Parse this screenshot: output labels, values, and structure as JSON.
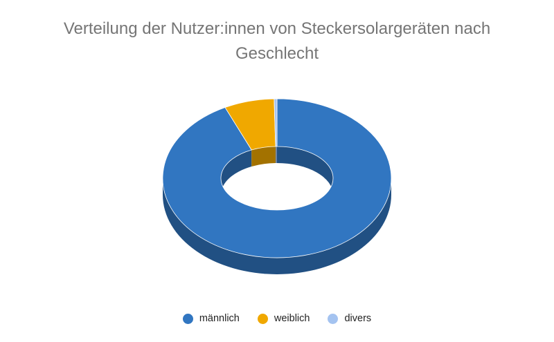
{
  "chart_data": {
    "type": "pie",
    "variant": "3d-donut",
    "title_lines": [
      "Verteilung der Nutzer:innen von Steckersolargeräten nach",
      "Geschlecht"
    ],
    "categories": [
      "männlich",
      "weiblich",
      "divers"
    ],
    "values": [
      92.5,
      7.1,
      0.4
    ],
    "colors": [
      "#3176c1",
      "#f0a800",
      "#a4c3f0"
    ],
    "legend_position": "bottom"
  }
}
